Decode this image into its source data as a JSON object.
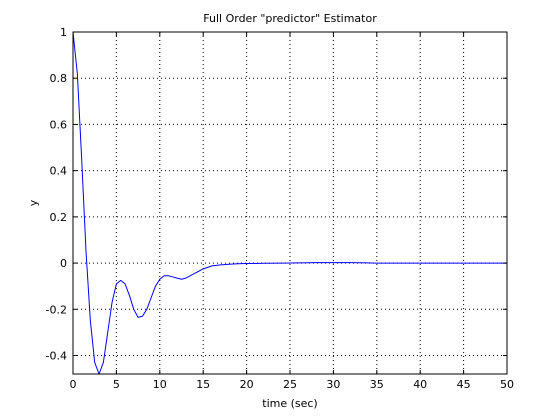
{
  "chart_data": {
    "type": "line",
    "title": "Full Order \"predictor\" Estimator",
    "xlabel": "time (sec)",
    "ylabel": "y",
    "xlim": [
      0,
      50
    ],
    "ylim": [
      -0.48,
      1
    ],
    "grid": true,
    "x_ticks": [
      0,
      5,
      10,
      15,
      20,
      25,
      30,
      35,
      40,
      45,
      50
    ],
    "x_tick_labels": [
      "0",
      "5",
      "10",
      "15",
      "20",
      "25",
      "30",
      "35",
      "40",
      "45",
      "50"
    ],
    "y_ticks": [
      1,
      0.8,
      0.6,
      0.4,
      0.2,
      0,
      -0.2,
      -0.4
    ],
    "y_tick_labels": [
      "1",
      "0.8",
      "0.6",
      "0.4",
      "0.2",
      "0",
      "-0.2",
      "-0.4"
    ],
    "series": [
      {
        "color": "#0000ff",
        "x": [
          0,
          0.5,
          1,
          1.5,
          2,
          2.5,
          3,
          3.5,
          4,
          4.5,
          5,
          5.5,
          6,
          6.5,
          7,
          7.5,
          8,
          8.5,
          9,
          9.5,
          10,
          10.5,
          11,
          11.5,
          12,
          12.5,
          13,
          13.5,
          14,
          14.5,
          15,
          16,
          17,
          18,
          19,
          20,
          22,
          24,
          26,
          28,
          30,
          32,
          34,
          35,
          36,
          38,
          40,
          42,
          44,
          46,
          48,
          50
        ],
        "y": [
          1,
          0.82,
          0.45,
          0.05,
          -0.25,
          -0.43,
          -0.48,
          -0.43,
          -0.3,
          -0.17,
          -0.09,
          -0.075,
          -0.09,
          -0.14,
          -0.2,
          -0.235,
          -0.23,
          -0.2,
          -0.15,
          -0.1,
          -0.07,
          -0.055,
          -0.055,
          -0.06,
          -0.065,
          -0.07,
          -0.065,
          -0.055,
          -0.045,
          -0.035,
          -0.025,
          -0.012,
          -0.008,
          -0.005,
          -0.003,
          -0.002,
          -0.001,
          0,
          0.001,
          0.002,
          0.002,
          0.002,
          0.001,
          0,
          0,
          0,
          0,
          0,
          0,
          0,
          0,
          0
        ]
      }
    ]
  }
}
